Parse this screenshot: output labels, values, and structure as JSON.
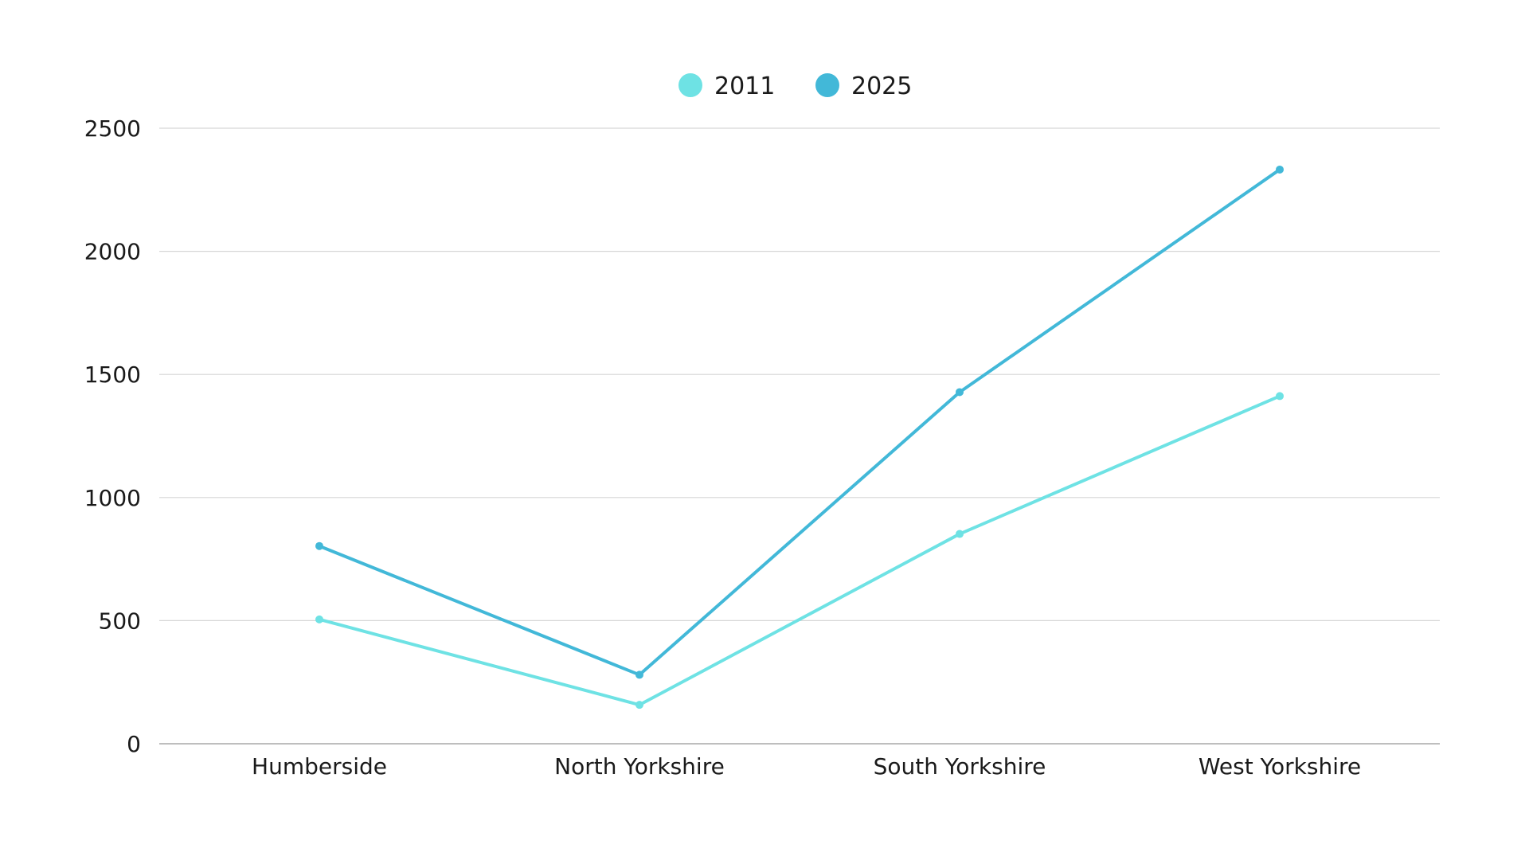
{
  "chart_data": {
    "type": "line",
    "title": "",
    "xlabel": "",
    "ylabel": "",
    "categories": [
      "Humberside",
      "North Yorkshire",
      "South Yorkshire",
      "West Yorkshire"
    ],
    "series": [
      {
        "name": "2011",
        "color": "#6ee2e4",
        "values": [
          505,
          158,
          852,
          1412
        ]
      },
      {
        "name": "2025",
        "color": "#42b8d8",
        "values": [
          803,
          280,
          1428,
          2332
        ]
      }
    ],
    "ylim": [
      0,
      2500
    ],
    "yticks": [
      0,
      500,
      1000,
      1500,
      2000,
      2500
    ],
    "grid": true,
    "legend_position": "top-center"
  }
}
